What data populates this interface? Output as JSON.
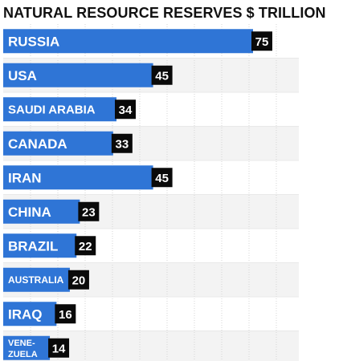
{
  "title": "NATURAL RESOURCE RESERVES $ TRILLION",
  "colors": {
    "bar": "#2f75d6",
    "value_box": "#0a0a0a",
    "band": "#f3f3f3",
    "grid": "#d6d6d6",
    "text": "#111111"
  },
  "chart_data": {
    "type": "bar",
    "orientation": "horizontal",
    "title": "NATURAL RESOURCE RESERVES $ TRILLION",
    "xlabel": "",
    "ylabel": "",
    "categories": [
      "RUSSIA",
      "USA",
      "SAUDI ARABIA",
      "CANADA",
      "IRAN",
      "CHINA",
      "BRAZIL",
      "AUSTRALIA",
      "IRAQ",
      "VENE-ZUELA"
    ],
    "values": [
      75,
      45,
      34,
      33,
      45,
      23,
      22,
      20,
      16,
      14
    ],
    "data_labels": [
      "75",
      "45",
      "34",
      "33",
      "45",
      "23",
      "22",
      "20",
      "16",
      "14"
    ],
    "xlim": [
      0,
      80
    ],
    "grid": true,
    "legend": "none"
  }
}
